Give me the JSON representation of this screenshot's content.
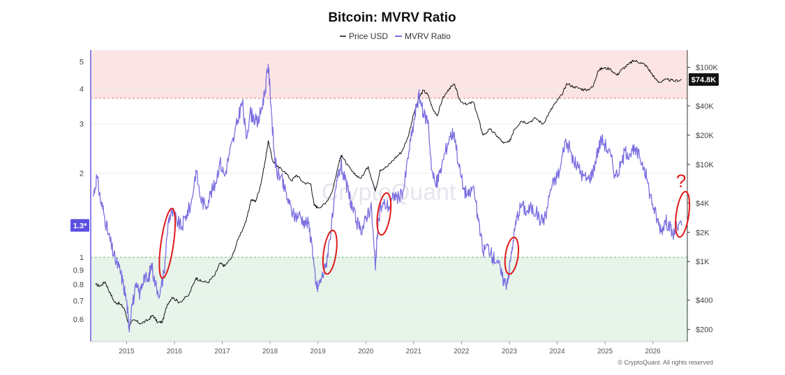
{
  "chart_data": {
    "type": "line",
    "title": "Bitcoin: MVRV Ratio",
    "legend": {
      "placement": "top-center"
    },
    "series": [
      {
        "name": "Price USD",
        "color": "#111111",
        "axis": "right",
        "points": [
          [
            2014.35,
            580
          ],
          [
            2014.45,
            560
          ],
          [
            2014.55,
            620
          ],
          [
            2014.65,
            480
          ],
          [
            2014.75,
            380
          ],
          [
            2014.85,
            370
          ],
          [
            2014.95,
            330
          ],
          [
            2015.05,
            220
          ],
          [
            2015.15,
            250
          ],
          [
            2015.3,
            230
          ],
          [
            2015.45,
            250
          ],
          [
            2015.55,
            280
          ],
          [
            2015.65,
            235
          ],
          [
            2015.75,
            240
          ],
          [
            2015.85,
            360
          ],
          [
            2015.95,
            430
          ],
          [
            2016.1,
            380
          ],
          [
            2016.3,
            450
          ],
          [
            2016.45,
            680
          ],
          [
            2016.55,
            630
          ],
          [
            2016.7,
            610
          ],
          [
            2016.85,
            730
          ],
          [
            2016.95,
            960
          ],
          [
            2017.05,
            900
          ],
          [
            2017.2,
            1100
          ],
          [
            2017.35,
            1800
          ],
          [
            2017.5,
            2600
          ],
          [
            2017.6,
            4300
          ],
          [
            2017.7,
            4200
          ],
          [
            2017.8,
            6100
          ],
          [
            2017.9,
            11000
          ],
          [
            2017.96,
            17500
          ],
          [
            2018.05,
            11000
          ],
          [
            2018.15,
            9500
          ],
          [
            2018.3,
            8500
          ],
          [
            2018.45,
            6800
          ],
          [
            2018.55,
            7800
          ],
          [
            2018.7,
            6500
          ],
          [
            2018.85,
            6300
          ],
          [
            2018.92,
            3800
          ],
          [
            2019.0,
            3600
          ],
          [
            2019.15,
            3900
          ],
          [
            2019.3,
            5300
          ],
          [
            2019.45,
            11000
          ],
          [
            2019.5,
            12500
          ],
          [
            2019.6,
            10000
          ],
          [
            2019.75,
            8000
          ],
          [
            2019.9,
            7200
          ],
          [
            2020.05,
            9500
          ],
          [
            2020.2,
            5300
          ],
          [
            2020.3,
            8800
          ],
          [
            2020.45,
            9500
          ],
          [
            2020.6,
            11500
          ],
          [
            2020.75,
            13500
          ],
          [
            2020.88,
            19000
          ],
          [
            2021.0,
            33000
          ],
          [
            2021.1,
            47000
          ],
          [
            2021.2,
            58000
          ],
          [
            2021.3,
            52000
          ],
          [
            2021.4,
            37000
          ],
          [
            2021.5,
            32000
          ],
          [
            2021.6,
            47000
          ],
          [
            2021.75,
            61000
          ],
          [
            2021.86,
            66000
          ],
          [
            2021.95,
            47000
          ],
          [
            2022.1,
            41000
          ],
          [
            2022.25,
            44000
          ],
          [
            2022.35,
            30000
          ],
          [
            2022.45,
            20000
          ],
          [
            2022.6,
            23000
          ],
          [
            2022.75,
            19500
          ],
          [
            2022.88,
            16500
          ],
          [
            2023.0,
            17000
          ],
          [
            2023.1,
            23000
          ],
          [
            2023.25,
            28000
          ],
          [
            2023.4,
            27000
          ],
          [
            2023.55,
            30000
          ],
          [
            2023.7,
            26000
          ],
          [
            2023.85,
            35000
          ],
          [
            2023.95,
            42000
          ],
          [
            2024.1,
            52000
          ],
          [
            2024.2,
            68000
          ],
          [
            2024.35,
            63000
          ],
          [
            2024.5,
            60000
          ],
          [
            2024.6,
            58000
          ],
          [
            2024.75,
            63000
          ],
          [
            2024.85,
            92000
          ],
          [
            2024.95,
            98000
          ],
          [
            2025.1,
            97000
          ],
          [
            2025.25,
            83000
          ],
          [
            2025.35,
            95000
          ],
          [
            2025.5,
            108000
          ],
          [
            2025.6,
            117000
          ],
          [
            2025.75,
            112000
          ],
          [
            2025.85,
            105000
          ],
          [
            2025.95,
            90000
          ],
          [
            2026.05,
            76000
          ],
          [
            2026.15,
            70000
          ],
          [
            2026.3,
            75000
          ],
          [
            2026.45,
            72000
          ],
          [
            2026.6,
            74800
          ]
        ]
      },
      {
        "name": "MVRV Ratio",
        "color": "#7b6fe0",
        "axis": "left",
        "points": [
          [
            2014.3,
            1.65
          ],
          [
            2014.38,
            1.95
          ],
          [
            2014.45,
            1.62
          ],
          [
            2014.52,
            1.45
          ],
          [
            2014.6,
            1.25
          ],
          [
            2014.68,
            1.1
          ],
          [
            2014.76,
            0.98
          ],
          [
            2014.84,
            0.92
          ],
          [
            2014.92,
            0.82
          ],
          [
            2015.0,
            0.7
          ],
          [
            2015.05,
            0.56
          ],
          [
            2015.1,
            0.66
          ],
          [
            2015.2,
            0.78
          ],
          [
            2015.28,
            0.74
          ],
          [
            2015.36,
            0.86
          ],
          [
            2015.45,
            0.82
          ],
          [
            2015.52,
            0.95
          ],
          [
            2015.6,
            0.8
          ],
          [
            2015.7,
            0.74
          ],
          [
            2015.78,
            0.88
          ],
          [
            2015.88,
            1.38
          ],
          [
            2015.95,
            1.45
          ],
          [
            2016.05,
            1.35
          ],
          [
            2016.15,
            1.28
          ],
          [
            2016.25,
            1.42
          ],
          [
            2016.35,
            1.55
          ],
          [
            2016.45,
            2.05
          ],
          [
            2016.55,
            1.62
          ],
          [
            2016.65,
            1.52
          ],
          [
            2016.75,
            1.68
          ],
          [
            2016.85,
            1.82
          ],
          [
            2016.95,
            2.2
          ],
          [
            2017.05,
            1.95
          ],
          [
            2017.15,
            2.35
          ],
          [
            2017.25,
            2.7
          ],
          [
            2017.35,
            3.25
          ],
          [
            2017.42,
            3.6
          ],
          [
            2017.5,
            2.65
          ],
          [
            2017.58,
            3.3
          ],
          [
            2017.66,
            3.15
          ],
          [
            2017.74,
            3.0
          ],
          [
            2017.82,
            3.4
          ],
          [
            2017.9,
            4.0
          ],
          [
            2017.96,
            4.9
          ],
          [
            2018.02,
            3.5
          ],
          [
            2018.08,
            2.4
          ],
          [
            2018.14,
            2.0
          ],
          [
            2018.22,
            1.95
          ],
          [
            2018.3,
            1.75
          ],
          [
            2018.4,
            1.55
          ],
          [
            2018.5,
            1.4
          ],
          [
            2018.6,
            1.42
          ],
          [
            2018.7,
            1.35
          ],
          [
            2018.8,
            1.32
          ],
          [
            2018.88,
            1.1
          ],
          [
            2018.95,
            0.8
          ],
          [
            2019.0,
            0.78
          ],
          [
            2019.08,
            0.85
          ],
          [
            2019.16,
            0.92
          ],
          [
            2019.24,
            1.15
          ],
          [
            2019.32,
            1.45
          ],
          [
            2019.4,
            1.88
          ],
          [
            2019.48,
            2.15
          ],
          [
            2019.56,
            1.88
          ],
          [
            2019.64,
            1.7
          ],
          [
            2019.72,
            1.5
          ],
          [
            2019.8,
            1.35
          ],
          [
            2019.88,
            1.25
          ],
          [
            2019.96,
            1.3
          ],
          [
            2020.04,
            1.45
          ],
          [
            2020.12,
            1.5
          ],
          [
            2020.2,
            0.9
          ],
          [
            2020.24,
            1.2
          ],
          [
            2020.3,
            1.5
          ],
          [
            2020.4,
            1.55
          ],
          [
            2020.5,
            1.52
          ],
          [
            2020.6,
            1.68
          ],
          [
            2020.7,
            1.62
          ],
          [
            2020.8,
            1.78
          ],
          [
            2020.9,
            2.4
          ],
          [
            2021.0,
            3.0
          ],
          [
            2021.06,
            3.5
          ],
          [
            2021.12,
            3.8
          ],
          [
            2021.2,
            3.25
          ],
          [
            2021.3,
            3.1
          ],
          [
            2021.38,
            2.05
          ],
          [
            2021.46,
            1.8
          ],
          [
            2021.55,
            2.0
          ],
          [
            2021.65,
            2.35
          ],
          [
            2021.75,
            2.7
          ],
          [
            2021.85,
            2.8
          ],
          [
            2021.95,
            2.1
          ],
          [
            2022.05,
            1.75
          ],
          [
            2022.15,
            1.65
          ],
          [
            2022.25,
            1.8
          ],
          [
            2022.35,
            1.35
          ],
          [
            2022.45,
            1.05
          ],
          [
            2022.55,
            1.1
          ],
          [
            2022.65,
            1.0
          ],
          [
            2022.75,
            0.98
          ],
          [
            2022.85,
            0.85
          ],
          [
            2022.93,
            0.8
          ],
          [
            2023.0,
            0.9
          ],
          [
            2023.08,
            1.15
          ],
          [
            2023.16,
            1.4
          ],
          [
            2023.26,
            1.55
          ],
          [
            2023.36,
            1.45
          ],
          [
            2023.46,
            1.5
          ],
          [
            2023.56,
            1.45
          ],
          [
            2023.66,
            1.35
          ],
          [
            2023.76,
            1.4
          ],
          [
            2023.86,
            1.75
          ],
          [
            2023.96,
            1.9
          ],
          [
            2024.06,
            2.05
          ],
          [
            2024.16,
            2.6
          ],
          [
            2024.24,
            2.5
          ],
          [
            2024.34,
            2.2
          ],
          [
            2024.44,
            2.1
          ],
          [
            2024.54,
            1.95
          ],
          [
            2024.64,
            1.9
          ],
          [
            2024.74,
            2.0
          ],
          [
            2024.82,
            2.3
          ],
          [
            2024.92,
            2.65
          ],
          [
            2025.02,
            2.5
          ],
          [
            2025.12,
            2.3
          ],
          [
            2025.22,
            1.95
          ],
          [
            2025.32,
            2.1
          ],
          [
            2025.42,
            2.4
          ],
          [
            2025.52,
            2.35
          ],
          [
            2025.62,
            2.4
          ],
          [
            2025.72,
            2.3
          ],
          [
            2025.82,
            2.1
          ],
          [
            2025.92,
            1.75
          ],
          [
            2026.02,
            1.5
          ],
          [
            2026.1,
            1.35
          ],
          [
            2026.18,
            1.25
          ],
          [
            2026.26,
            1.35
          ],
          [
            2026.34,
            1.3
          ],
          [
            2026.42,
            1.2
          ],
          [
            2026.5,
            1.28
          ],
          [
            2026.6,
            1.3
          ]
        ]
      }
    ],
    "x_axis": {
      "range": [
        2014.25,
        2026.72
      ],
      "ticks": [
        "2015",
        "2016",
        "2017",
        "2018",
        "2019",
        "2020",
        "2021",
        "2022",
        "2023",
        "2024",
        "2025",
        "2026"
      ]
    },
    "y_left": {
      "scale": "log",
      "range": [
        0.5,
        5.5
      ],
      "ticks": [
        {
          "value": 0.6,
          "label": "0.6"
        },
        {
          "value": 0.7,
          "label": "0.7"
        },
        {
          "value": 0.8,
          "label": "0.8"
        },
        {
          "value": 0.9,
          "label": "0.9"
        },
        {
          "value": 1,
          "label": "1"
        },
        {
          "value": 2,
          "label": "2"
        },
        {
          "value": 3,
          "label": "3"
        },
        {
          "value": 4,
          "label": "4"
        },
        {
          "value": 5,
          "label": "5"
        }
      ],
      "current_value_label": "1.3*",
      "current_value": 1.3
    },
    "y_right": {
      "scale": "log",
      "range": [
        150,
        150000
      ],
      "ticks": [
        {
          "value": 200,
          "label": "$200"
        },
        {
          "value": 400,
          "label": "$400"
        },
        {
          "value": 1000,
          "label": "$1K"
        },
        {
          "value": 2000,
          "label": "$2K"
        },
        {
          "value": 4000,
          "label": "$4K"
        },
        {
          "value": 10000,
          "label": "$10K"
        },
        {
          "value": 20000,
          "label": "$20K"
        },
        {
          "value": 40000,
          "label": "$40K"
        },
        {
          "value": 100000,
          "label": "$100K"
        }
      ],
      "current_value_label": "$74.8K",
      "current_value": 74800
    },
    "zones": [
      {
        "name": "overvalued",
        "from": 3.7,
        "to": 5.5,
        "color": "#fde4e4"
      },
      {
        "name": "undervalued",
        "from": 0.5,
        "to": 1.0,
        "color": "#e6f4ea"
      }
    ],
    "reference_lines": [
      {
        "value": 3.7,
        "color": "#d08080"
      },
      {
        "value": 1.0,
        "color": "#6cbf7d"
      }
    ],
    "annotations": [
      {
        "type": "ellipse",
        "x": 2015.85,
        "y_low": 0.84,
        "y_high": 1.5
      },
      {
        "type": "ellipse",
        "x": 2019.25,
        "y_low": 0.87,
        "y_high": 1.25
      },
      {
        "type": "ellipse",
        "x": 2020.38,
        "y_low": 1.2,
        "y_high": 1.7
      },
      {
        "type": "ellipse",
        "x": 2023.05,
        "y_low": 0.87,
        "y_high": 1.18
      },
      {
        "type": "ellipse",
        "x": 2026.62,
        "y_low": 1.18,
        "y_high": 1.72,
        "label": "?"
      }
    ],
    "watermark": "CryptoQuant",
    "grid": true
  },
  "footer": {
    "copyright": "© CryptoQuant. All rights reserved"
  }
}
